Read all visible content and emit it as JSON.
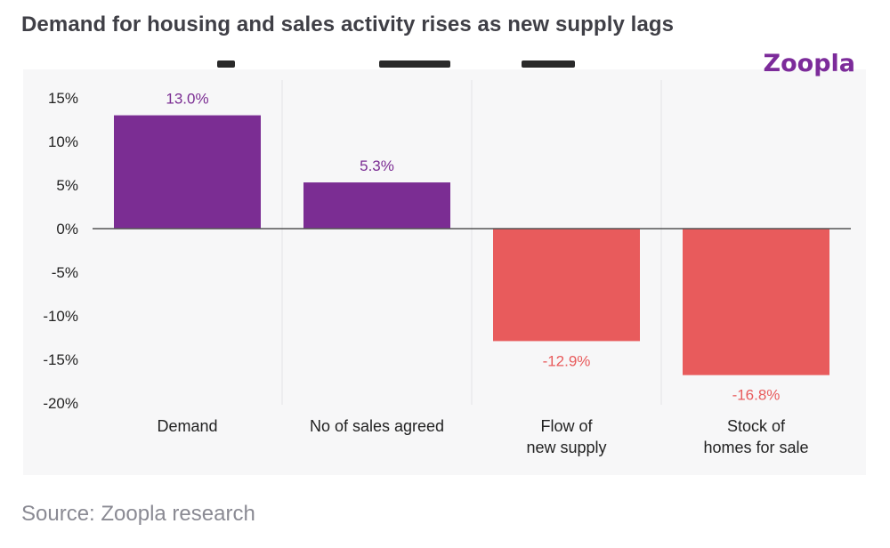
{
  "headline": "Demand for housing and sales activity rises as new supply lags",
  "brand": "Zoopla",
  "source": "Source: Zoopla research",
  "colors": {
    "positive": "#7b2d93",
    "negative": "#e85b5c",
    "panel": "#f7f7f8"
  },
  "chart_data": {
    "type": "bar",
    "categories": [
      [
        "Demand"
      ],
      [
        "No of sales agreed"
      ],
      [
        "Flow of",
        "new supply"
      ],
      [
        "Stock of",
        "homes for sale"
      ]
    ],
    "values": [
      13.0,
      5.3,
      -12.9,
      -16.8
    ],
    "data_labels": [
      "13.0%",
      "5.3%",
      "-12.9%",
      "-16.8%"
    ],
    "yticks": [
      "15%",
      "10%",
      "5%",
      "0%",
      "-5%",
      "-10%",
      "-15%",
      "-20%"
    ],
    "ytick_values": [
      15,
      10,
      5,
      0,
      -5,
      -10,
      -15,
      -20
    ],
    "ylim": [
      -20,
      15
    ],
    "grid": "vertical separators",
    "legend": "none"
  }
}
